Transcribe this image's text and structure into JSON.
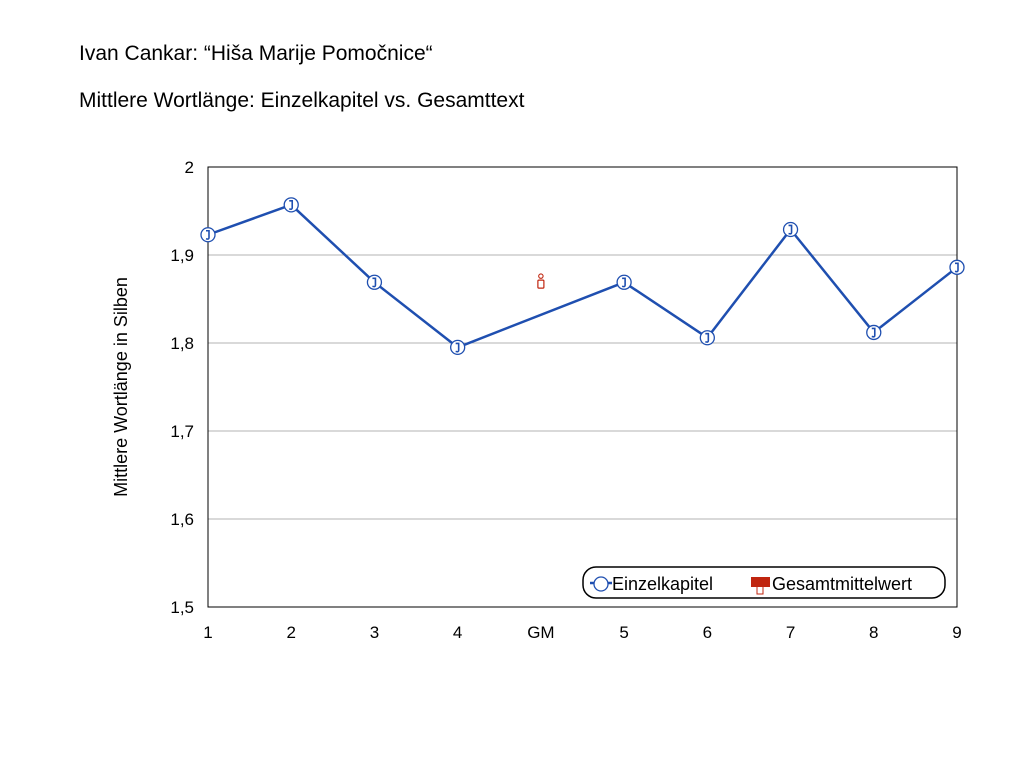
{
  "header": {
    "title": "Ivan Cankar: “Hiša Marije Pomočnice“",
    "subtitle": "Mittlere Wortlänge: Einzelkapitel vs. Gesamttext"
  },
  "chart_data": {
    "type": "line",
    "categories": [
      "1",
      "2",
      "3",
      "4",
      "GM",
      "5",
      "6",
      "7",
      "8",
      "9"
    ],
    "series": [
      {
        "name": "Einzelkapitel",
        "color": "#1f4fb0",
        "values": [
          1.923,
          1.957,
          1.869,
          1.795,
          null,
          1.869,
          1.806,
          1.929,
          1.812,
          1.886
        ]
      },
      {
        "name": "Gesamtmittelwert",
        "color": "#c0250f",
        "values": [
          null,
          null,
          null,
          null,
          1.868,
          null,
          null,
          null,
          null,
          null
        ]
      }
    ],
    "ylabel": "Mittlere Wortlänge in Silben",
    "xlabel": "",
    "ylim": [
      1.5,
      2.0
    ],
    "yticks": [
      "1,5",
      "1,6",
      "1,7",
      "1,8",
      "1,9",
      "2"
    ],
    "grid": true,
    "legend_position": "bottom-right"
  }
}
